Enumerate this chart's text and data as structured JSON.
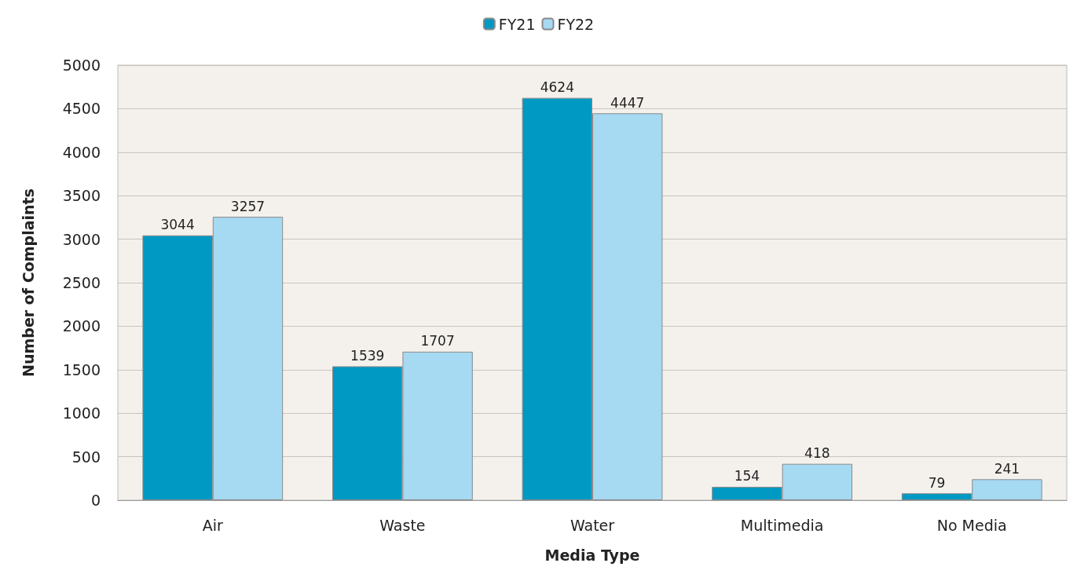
{
  "chart_data": {
    "type": "bar",
    "xlabel": "Media Type",
    "ylabel": "Number of Complaints",
    "categories": [
      "Air",
      "Waste",
      "Water",
      "Multimedia",
      "No Media"
    ],
    "series": [
      {
        "name": "FY21",
        "color": "#0099c4",
        "values": [
          3044,
          1539,
          4624,
          154,
          79
        ]
      },
      {
        "name": "FY22",
        "color": "#a6d9f2",
        "values": [
          3257,
          1707,
          4447,
          418,
          241
        ]
      }
    ],
    "ylim": [
      0,
      5000
    ],
    "yticks": [
      0,
      500,
      1000,
      1500,
      2000,
      2500,
      3000,
      3500,
      4000,
      4500,
      5000
    ],
    "grid": "y",
    "legend": "top",
    "data_labels": true
  }
}
